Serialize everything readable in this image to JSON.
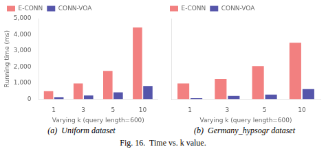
{
  "chart_data": [
    {
      "type": "bar",
      "subtitle": "(a)  Uniform dataset",
      "xlabel": "Varying k (query length=600)",
      "ylabel": "Running time (ms)",
      "categories": [
        "1",
        "3",
        "5",
        "10"
      ],
      "series": [
        {
          "name": "E-CONN",
          "color": "#f28080",
          "values": [
            500,
            980,
            1750,
            4450
          ]
        },
        {
          "name": "CONN-VOA",
          "color": "#5555aa",
          "values": [
            120,
            230,
            420,
            820
          ]
        }
      ],
      "ylim": [
        0,
        5000
      ],
      "yticks": [
        0,
        1000,
        2000,
        3000,
        4000,
        5000
      ],
      "grid": false,
      "legend": "upper left"
    },
    {
      "type": "bar",
      "subtitle": "(b)  Germany_hypsogr dataset",
      "xlabel": "Varying k (query length=600)",
      "categories": [
        "1",
        "3",
        "5",
        "10"
      ],
      "series": [
        {
          "name": "E-CONN",
          "color": "#f28080",
          "values": [
            980,
            1250,
            2050,
            3500
          ]
        },
        {
          "name": "CONN-VOA",
          "color": "#5555aa",
          "values": [
            60,
            200,
            280,
            620
          ]
        }
      ],
      "ylim": [
        0,
        5000
      ],
      "yticks": [
        0,
        1000,
        2000,
        3000,
        4000,
        5000
      ],
      "grid": false,
      "legend": "upper left",
      "tick_labels": "x"
    }
  ],
  "caption": "Fig. 16.  Time vs. k value."
}
